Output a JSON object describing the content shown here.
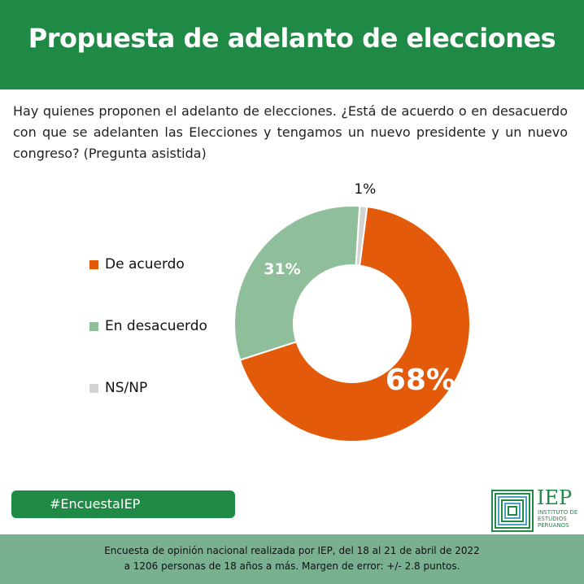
{
  "header": {
    "title": "Propuesta de adelanto de elecciones"
  },
  "question": "Hay quienes proponen el adelanto de elecciones. ¿Está de acuerdo o en desacuerdo con que se adelanten las Elecciones y tengamos un nuevo presidente  y un nuevo congreso? (Pregunta asistida)",
  "colors": {
    "brand_green": "#1f8a45",
    "acuerdo": "#e35b0a",
    "desacuerdo": "#8fbf9a",
    "nsnp": "#d3d3d3",
    "footer": "#79b090"
  },
  "chart_data": {
    "type": "pie",
    "variant": "donut",
    "title": "",
    "legend_position": "left",
    "series": [
      {
        "name": "De acuerdo",
        "value": 68,
        "label": "68%"
      },
      {
        "name": "En desacuerdo",
        "value": 31,
        "label": "31%"
      },
      {
        "name": "NS/NP",
        "value": 1,
        "label": "1%"
      }
    ]
  },
  "hashtag": "#EncuestaIEP",
  "logo": {
    "name": "IEP",
    "subtitle_lines": [
      "INSTITUTO DE",
      "ESTUDIOS",
      "PERUANOS"
    ],
    "icon": "iep-logo-icon"
  },
  "footer": {
    "line1": "Encuesta de opinión nacional realizada por IEP, del 18 al 21 de abril de 2022",
    "line2": "a 1206 personas de 18 años a más. Margen de error: +/- 2.8 puntos."
  }
}
